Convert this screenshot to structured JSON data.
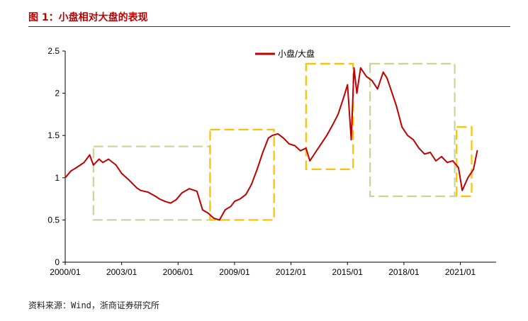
{
  "figure": {
    "title": "图 1：小盘相对大盘的表现",
    "source": "资料来源：Wind，浙商证券研究所"
  },
  "chart_data": {
    "type": "line",
    "title": "",
    "xlabel": "",
    "ylabel": "",
    "xlim": [
      2000.0,
      2022.9
    ],
    "ylim": [
      0,
      2.5
    ],
    "x_ticks": [
      "2000/01",
      "2003/01",
      "2006/01",
      "2009/01",
      "2012/01",
      "2015/01",
      "2018/01",
      "2021/01"
    ],
    "y_ticks": [
      "0",
      "0.5",
      "1",
      "1.5",
      "2",
      "2.5"
    ],
    "grid": false,
    "legend_position": "top-center",
    "series": [
      {
        "name": "小盘/大盘",
        "color": "#c00000",
        "x": [
          2000.0,
          2000.3,
          2000.6,
          2001.0,
          2001.3,
          2001.5,
          2001.8,
          2002.0,
          2002.3,
          2002.7,
          2003.0,
          2003.4,
          2003.8,
          2004.0,
          2004.4,
          2004.8,
          2005.0,
          2005.3,
          2005.6,
          2005.9,
          2006.2,
          2006.6,
          2007.0,
          2007.3,
          2007.6,
          2007.9,
          2008.2,
          2008.5,
          2008.8,
          2009.0,
          2009.3,
          2009.6,
          2009.9,
          2010.2,
          2010.5,
          2010.8,
          2011.0,
          2011.3,
          2011.6,
          2011.9,
          2012.2,
          2012.5,
          2012.8,
          2013.0,
          2013.3,
          2013.6,
          2013.9,
          2014.2,
          2014.5,
          2014.8,
          2015.0,
          2015.2,
          2015.35,
          2015.5,
          2015.7,
          2016.0,
          2016.3,
          2016.6,
          2016.9,
          2017.1,
          2017.3,
          2017.6,
          2017.9,
          2018.2,
          2018.5,
          2018.8,
          2019.1,
          2019.4,
          2019.7,
          2020.0,
          2020.3,
          2020.6,
          2020.9,
          2021.1,
          2021.4,
          2021.7,
          2021.9
        ],
        "values": [
          1.0,
          1.08,
          1.12,
          1.18,
          1.27,
          1.15,
          1.22,
          1.18,
          1.22,
          1.15,
          1.05,
          0.97,
          0.88,
          0.85,
          0.83,
          0.78,
          0.75,
          0.72,
          0.7,
          0.74,
          0.82,
          0.87,
          0.84,
          0.62,
          0.58,
          0.52,
          0.5,
          0.62,
          0.66,
          0.72,
          0.75,
          0.8,
          0.92,
          1.1,
          1.3,
          1.47,
          1.5,
          1.52,
          1.47,
          1.4,
          1.38,
          1.32,
          1.35,
          1.2,
          1.3,
          1.4,
          1.5,
          1.62,
          1.75,
          1.95,
          2.1,
          1.45,
          2.3,
          2.0,
          2.3,
          2.2,
          2.15,
          2.05,
          2.25,
          2.18,
          2.05,
          1.85,
          1.6,
          1.5,
          1.45,
          1.35,
          1.28,
          1.3,
          1.2,
          1.25,
          1.18,
          1.2,
          1.12,
          0.85,
          1.0,
          1.1,
          1.32
        ]
      }
    ],
    "highlight_boxes": [
      {
        "color": "#c4d79b",
        "x0": 2001.5,
        "x1": 2007.7,
        "y0": 0.5,
        "y1": 1.37
      },
      {
        "color": "#ffc000",
        "x0": 2007.7,
        "x1": 2011.1,
        "y0": 0.5,
        "y1": 1.57
      },
      {
        "color": "#ffc000",
        "x0": 2012.8,
        "x1": 2015.3,
        "y0": 1.1,
        "y1": 2.35
      },
      {
        "color": "#c4d79b",
        "x0": 2016.2,
        "x1": 2020.7,
        "y0": 0.78,
        "y1": 2.35
      },
      {
        "color": "#ffc000",
        "x0": 2020.8,
        "x1": 2021.6,
        "y0": 0.78,
        "y1": 1.6
      }
    ]
  }
}
